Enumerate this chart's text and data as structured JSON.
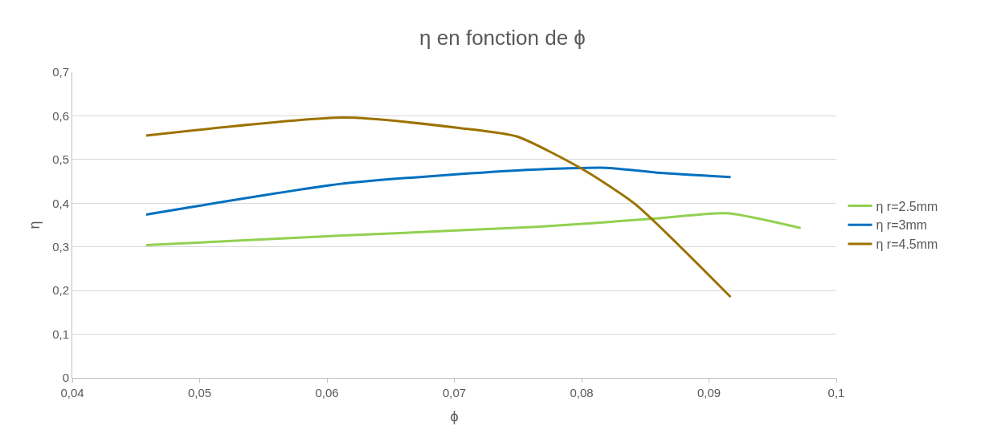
{
  "chart_data": {
    "type": "line",
    "title": "η en fonction de ϕ",
    "xlabel": "ϕ",
    "ylabel": "η",
    "xlim": [
      0.04,
      0.1
    ],
    "xticks": [
      {
        "value": 0.04,
        "label": "0,04"
      },
      {
        "value": 0.05,
        "label": "0,05"
      },
      {
        "value": 0.06,
        "label": "0,06"
      },
      {
        "value": 0.07,
        "label": "0,07"
      },
      {
        "value": 0.08,
        "label": "0,08"
      },
      {
        "value": 0.09,
        "label": "0,09"
      },
      {
        "value": 0.1,
        "label": "0,1"
      }
    ],
    "ylim": [
      0,
      0.7
    ],
    "yticks": [
      0,
      {
        "value": 0.1,
        "label": "0,1"
      },
      {
        "value": 0.2,
        "label": "0,2"
      },
      {
        "value": 0.3,
        "label": "0,3"
      },
      {
        "value": 0.4,
        "label": "0,4"
      },
      {
        "value": 0.5,
        "label": "0,5"
      },
      {
        "value": 0.6,
        "label": "0,6"
      },
      {
        "value": 0.7,
        "label": "0,7"
      }
    ],
    "grid": "y",
    "legend": "right",
    "marker": "none",
    "line_style": "solid",
    "series": [
      {
        "name": "η r=2.5mm",
        "color": "#92d050",
        "x": [
          0.0458,
          0.0613,
          0.0765,
          0.0859,
          0.0914,
          0.0972
        ],
        "values": [
          0.304,
          0.326,
          0.346,
          0.365,
          0.377,
          0.343
        ]
      },
      {
        "name": "η r=3mm",
        "color": "#0070c0",
        "x": [
          0.0458,
          0.0613,
          0.0749,
          0.0819,
          0.0859,
          0.0917
        ],
        "values": [
          0.374,
          0.445,
          0.475,
          0.481,
          0.47,
          0.46
        ]
      },
      {
        "name": "η r=4.5mm",
        "color": "#9c7200",
        "x": [
          0.0458,
          0.0613,
          0.0705,
          0.0749,
          0.08,
          0.0842,
          0.0917
        ],
        "values": [
          0.555,
          0.596,
          0.572,
          0.553,
          0.479,
          0.398,
          0.185
        ]
      }
    ]
  }
}
